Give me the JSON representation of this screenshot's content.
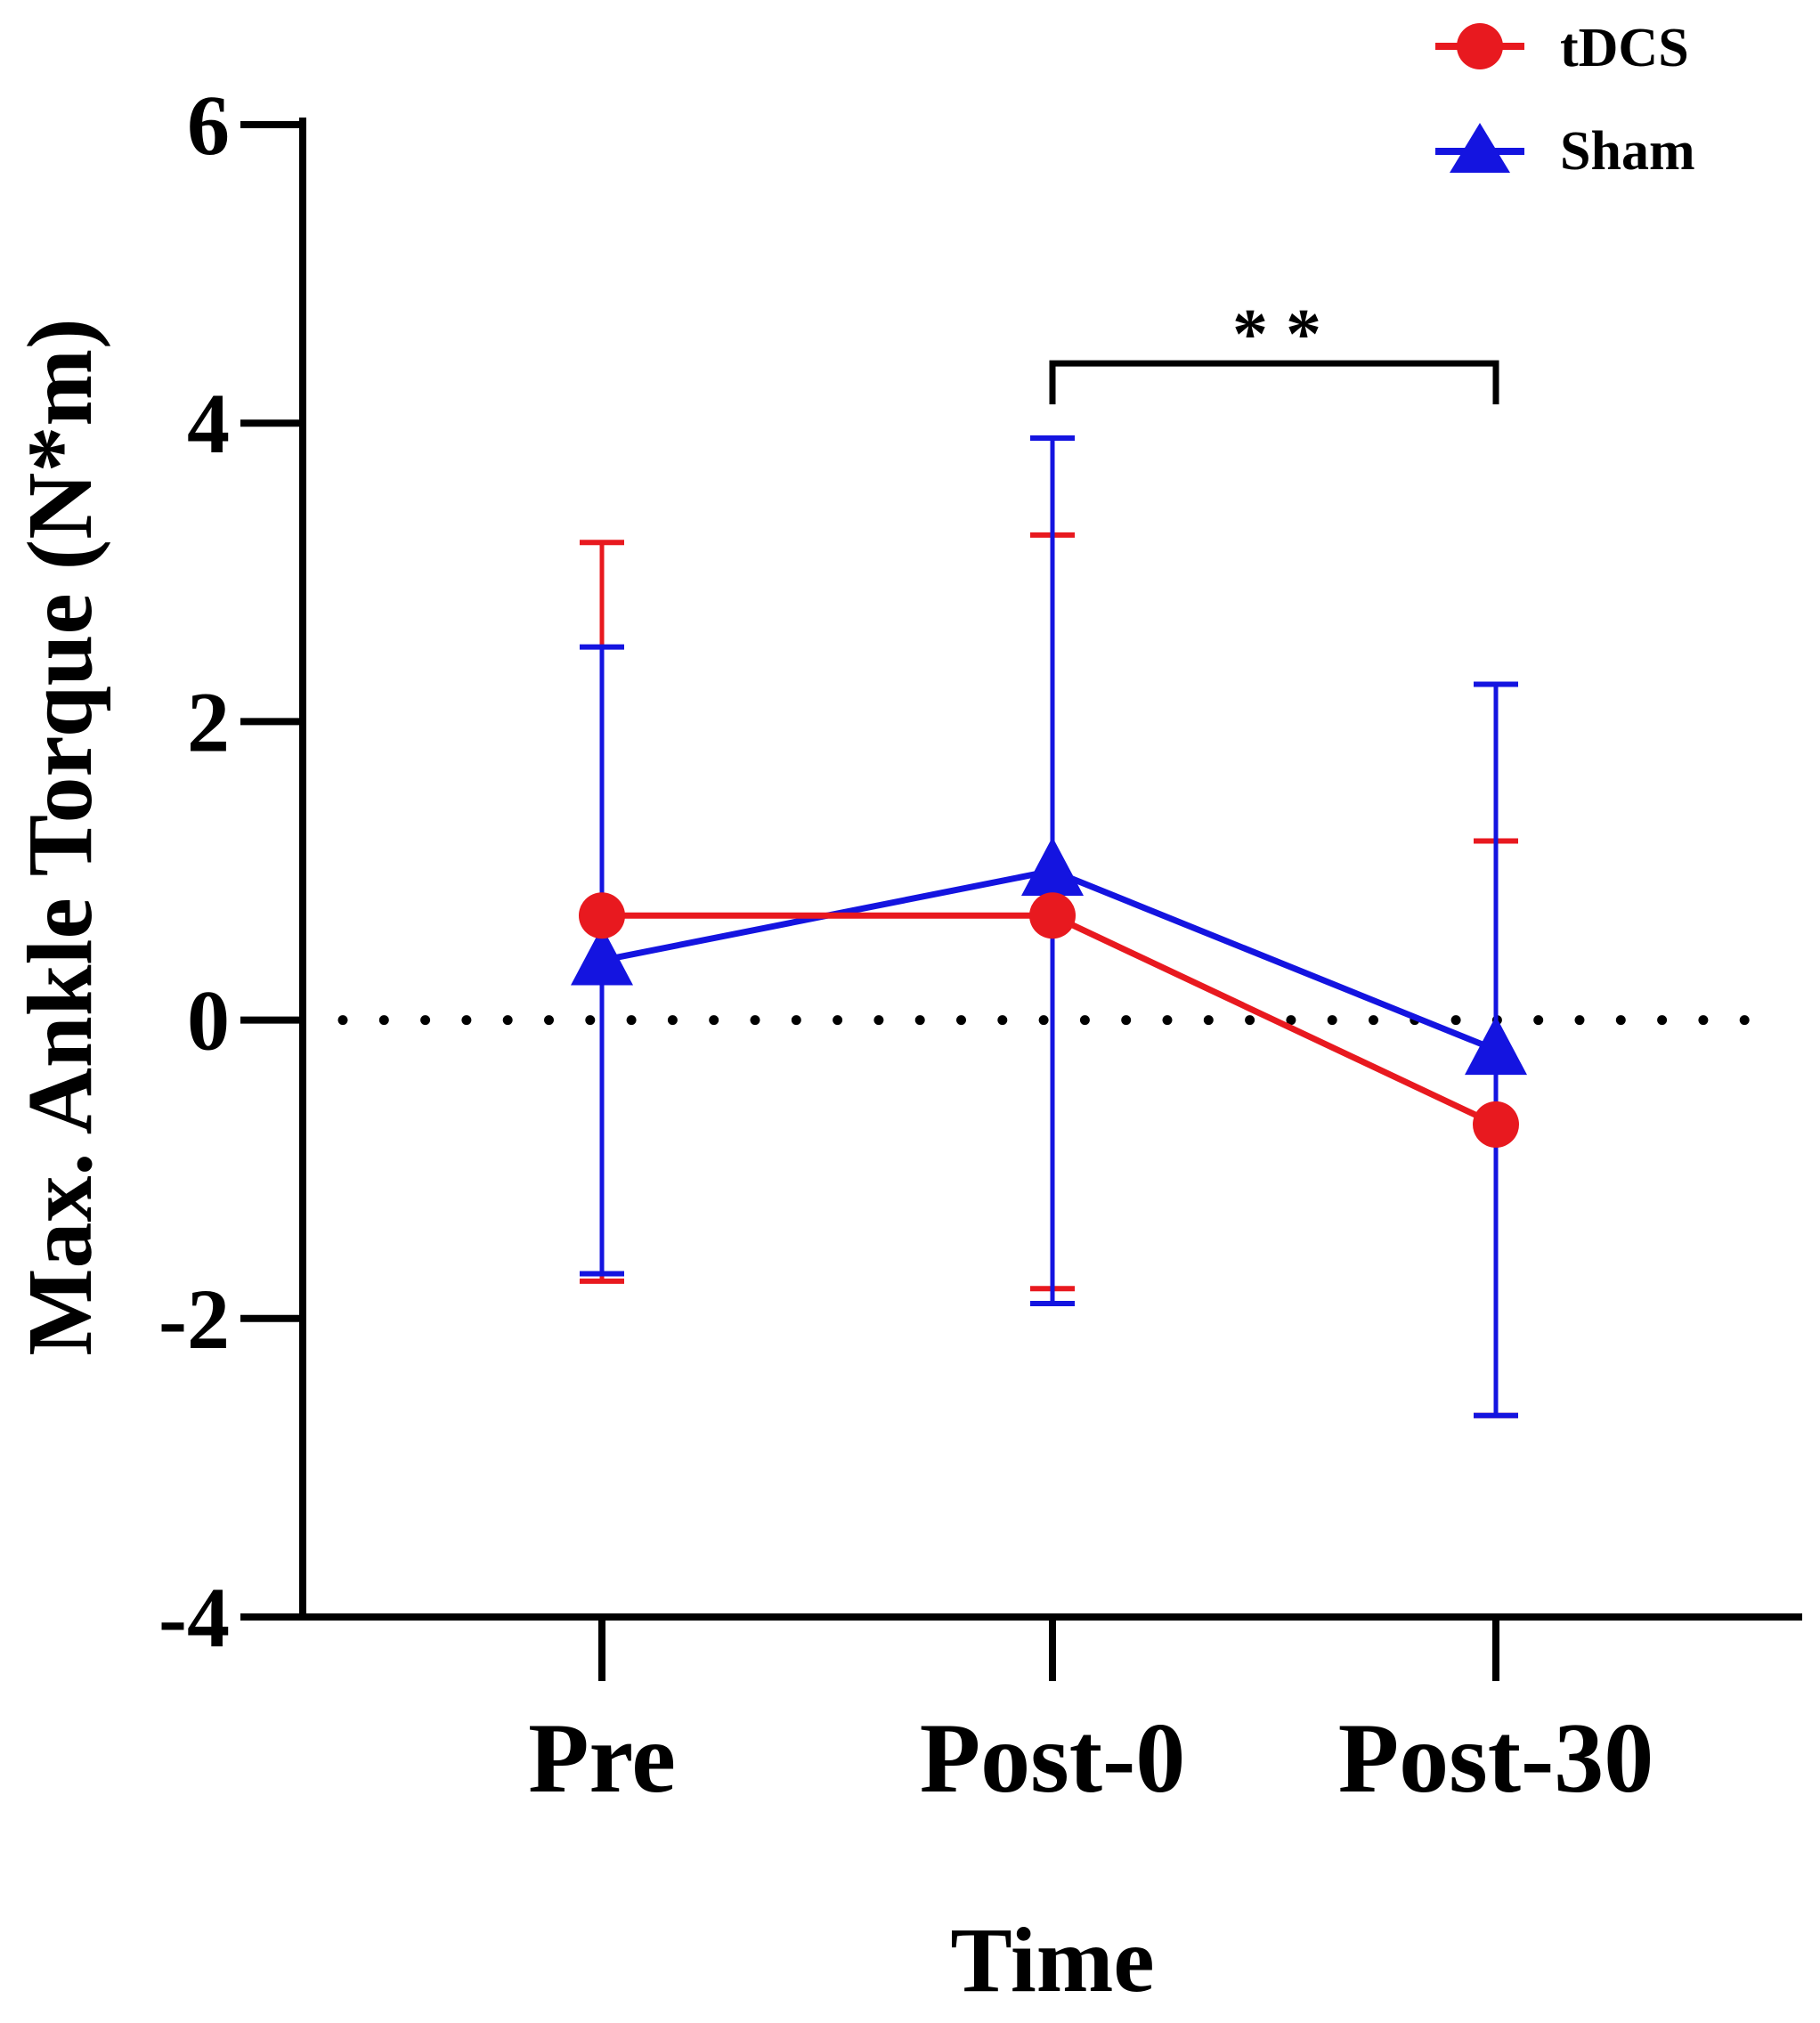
{
  "chart_data": {
    "type": "line",
    "title": "",
    "xlabel": "Time",
    "ylabel": "Max. Ankle Torque (N*m)",
    "categories": [
      "Pre",
      "Post-0",
      "Post-30"
    ],
    "ylim": [
      -4,
      6
    ],
    "yticks": [
      -4,
      -2,
      0,
      2,
      4,
      6
    ],
    "ytick_labels": [
      "-4",
      "-2",
      "0",
      "2",
      "4",
      "6"
    ],
    "reference_line": {
      "y": 0,
      "style": "dotted"
    },
    "grid": false,
    "legend_position": "top-right",
    "series": [
      {
        "name": "tDCS",
        "marker": "circle",
        "color": "#e8191f",
        "values": [
          0.7,
          0.7,
          -0.7
        ],
        "error_low": [
          -1.75,
          -1.8,
          -2.65
        ],
        "error_high": [
          3.2,
          3.25,
          1.2
        ]
      },
      {
        "name": "Sham",
        "marker": "triangle",
        "color": "#1414e0",
        "values": [
          0.4,
          1.0,
          -0.2
        ],
        "error_low": [
          -1.7,
          -1.9,
          -2.65
        ],
        "error_high": [
          2.5,
          3.9,
          2.25
        ]
      }
    ],
    "annotations": [
      {
        "text": "* *",
        "from_category": "Post-0",
        "to_category": "Post-30",
        "y": 4.4
      }
    ]
  }
}
